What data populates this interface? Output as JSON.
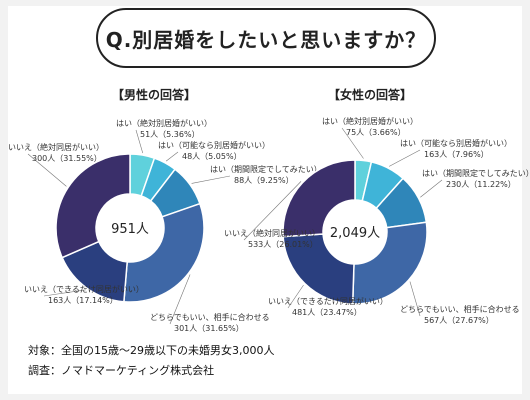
{
  "title": "Q.別居婚をしたいと思いますか？",
  "panels": {
    "male_title": "【男性の回答】",
    "female_title": "【女性の回答】"
  },
  "footer": {
    "line1": "対象：全国の15歳〜29歳以下の未婚男女3,000人",
    "line2": "調査：ノマドマーケティング株式会社"
  },
  "colors": {
    "c1": "#5fd1dc",
    "c2": "#3fb4d8",
    "c3": "#2f86b9",
    "c4": "#3e67a6",
    "c5": "#2a3f7f",
    "c6": "#3a2f6a"
  },
  "chart_data": [
    {
      "type": "pie",
      "title": "【男性の回答】",
      "center_label": "951人",
      "categories": [
        "はい（絶対別居婚がいい）",
        "はい（可能なら別居婚がいい）",
        "はい（期間限定でしてみたい）",
        "どちらでもいい、相手に合わせる",
        "いいえ（できるだけ同居がいい）",
        "いいえ（絶対同居がいい）"
      ],
      "values": [
        51,
        48,
        88,
        301,
        163,
        300
      ],
      "percent_labels": [
        "51人（5.36%）",
        "48人（5.05%）",
        "88人（9.25%）",
        "301人（31.65%）",
        "163人（17.14%）",
        "300人（31.55%）"
      ]
    },
    {
      "type": "pie",
      "title": "【女性の回答】",
      "center_label": "2,049人",
      "categories": [
        "はい（絶対別居婚がいい）",
        "はい（可能なら別居婚がいい）",
        "はい（期間限定でしてみたい）",
        "どちらでもいい、相手に合わせる",
        "いいえ（できるだけ同居がいい）",
        "いいえ（絶対同居がいい）"
      ],
      "values": [
        75,
        163,
        230,
        567,
        481,
        533
      ],
      "percent_labels": [
        "75人（3.66%）",
        "163人（7.96%）",
        "230人（11.22%）",
        "567人（27.67%）",
        "481人（23.47%）",
        "533人（26.01%）"
      ]
    }
  ]
}
